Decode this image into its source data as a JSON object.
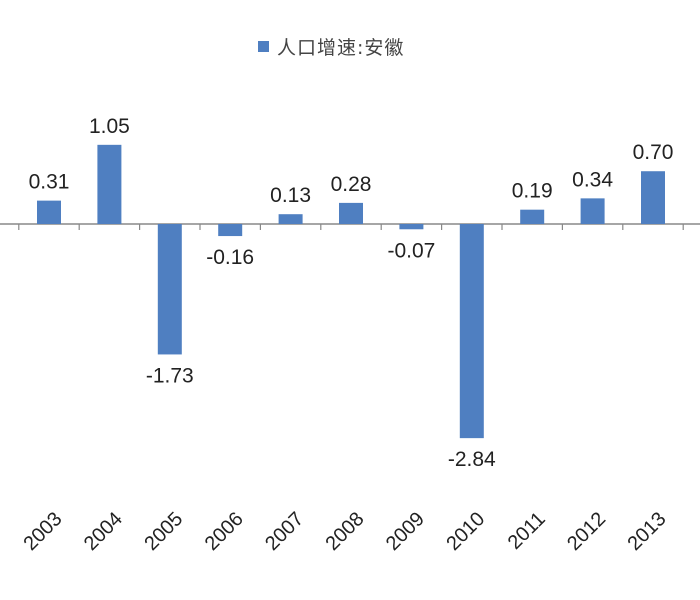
{
  "chart_data": {
    "type": "bar",
    "legend": {
      "position": "top",
      "entries": [
        "人口增速:安徽"
      ]
    },
    "categories": [
      "2003",
      "2004",
      "2005",
      "2006",
      "2007",
      "2008",
      "2009",
      "2010",
      "2011",
      "2012",
      "2013"
    ],
    "series": [
      {
        "name": "人口增速:安徽",
        "color": "#4F7FC1",
        "values": [
          0.31,
          1.05,
          -1.73,
          -0.16,
          0.13,
          0.28,
          -0.07,
          -2.84,
          0.19,
          0.34,
          0.7
        ]
      }
    ],
    "data_labels": [
      "0.31",
      "1.05",
      "-1.73",
      "-0.16",
      "0.13",
      "0.28",
      "-0.07",
      "-2.84",
      "0.19",
      "0.34",
      "0.70"
    ],
    "grid": false
  }
}
